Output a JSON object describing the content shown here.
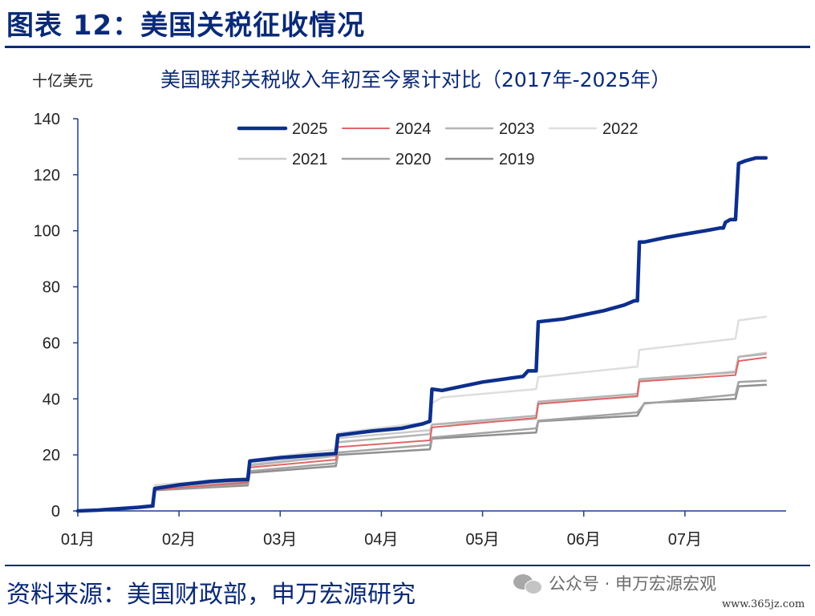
{
  "header": {
    "figure_title": "图表 12：美国关税征收情况",
    "unit_label": "十亿美元"
  },
  "footer": {
    "source": "资料来源：美国财政部，申万宏源研究",
    "wechat": "公众号 · 申万宏源宏观",
    "watermark": "www.365jz.com"
  },
  "chart_data": {
    "type": "line",
    "title": "美国联邦关税收入年初至今累计对比（2017年-2025年）",
    "ylabel": "十亿美元",
    "xlabel": "",
    "ylim": [
      0,
      140
    ],
    "yticks": [
      0,
      20,
      40,
      60,
      80,
      100,
      120,
      140
    ],
    "xlim": [
      0,
      7
    ],
    "xticks": [
      "01月",
      "02月",
      "03月",
      "04月",
      "05月",
      "06月",
      "07月"
    ],
    "grid": false,
    "legend_position": "top-center",
    "series": [
      {
        "name": "2025",
        "color": "#0d2f8c",
        "width": 4.5,
        "points": [
          [
            0,
            0
          ],
          [
            0.2,
            0.3
          ],
          [
            0.4,
            0.8
          ],
          [
            0.6,
            1.3
          ],
          [
            0.74,
            1.8
          ],
          [
            0.76,
            8
          ],
          [
            1.0,
            9.3
          ],
          [
            1.3,
            10.5
          ],
          [
            1.5,
            11.0
          ],
          [
            1.68,
            11.2
          ],
          [
            1.7,
            17.8
          ],
          [
            2.0,
            19.0
          ],
          [
            2.3,
            19.8
          ],
          [
            2.55,
            20.5
          ],
          [
            2.57,
            27
          ],
          [
            2.9,
            28.5
          ],
          [
            3.2,
            29.5
          ],
          [
            3.4,
            31
          ],
          [
            3.48,
            32
          ],
          [
            3.5,
            43.5
          ],
          [
            3.6,
            43
          ],
          [
            3.8,
            44.5
          ],
          [
            4.0,
            46
          ],
          [
            4.2,
            47
          ],
          [
            4.4,
            48
          ],
          [
            4.45,
            50
          ],
          [
            4.5,
            50
          ],
          [
            4.53,
            50
          ],
          [
            4.55,
            67.5
          ],
          [
            4.8,
            68.5
          ],
          [
            5.0,
            70
          ],
          [
            5.2,
            71.5
          ],
          [
            5.4,
            73.5
          ],
          [
            5.5,
            75
          ],
          [
            5.53,
            75
          ],
          [
            5.55,
            96
          ],
          [
            5.6,
            96
          ],
          [
            5.8,
            97.5
          ],
          [
            6.0,
            98.8
          ],
          [
            6.2,
            100
          ],
          [
            6.35,
            101
          ],
          [
            6.38,
            101
          ],
          [
            6.4,
            103
          ],
          [
            6.45,
            104
          ],
          [
            6.5,
            104
          ],
          [
            6.53,
            124
          ],
          [
            6.6,
            125
          ],
          [
            6.7,
            126
          ],
          [
            6.8,
            126
          ]
        ]
      },
      {
        "name": "2024",
        "color": "#e06666",
        "width": 2,
        "points": [
          [
            0,
            0
          ],
          [
            0.4,
            0.8
          ],
          [
            0.75,
            1.6
          ],
          [
            0.76,
            7.6
          ],
          [
            1.68,
            10.2
          ],
          [
            1.7,
            15.5
          ],
          [
            2.55,
            18.3
          ],
          [
            2.57,
            22.8
          ],
          [
            3.48,
            25.2
          ],
          [
            3.5,
            29.8
          ],
          [
            4.53,
            33.2
          ],
          [
            4.55,
            38.2
          ],
          [
            5.53,
            41
          ],
          [
            5.55,
            46.2
          ],
          [
            6.5,
            48.5
          ],
          [
            6.53,
            53.5
          ],
          [
            6.8,
            54.8
          ]
        ]
      },
      {
        "name": "2023",
        "color": "#b5b5b5",
        "width": 2.5,
        "points": [
          [
            0,
            0
          ],
          [
            0.4,
            0.8
          ],
          [
            0.75,
            1.6
          ],
          [
            0.76,
            8
          ],
          [
            1.68,
            10.6
          ],
          [
            1.7,
            16.2
          ],
          [
            2.55,
            19.6
          ],
          [
            2.57,
            24.5
          ],
          [
            3.48,
            27.4
          ],
          [
            3.5,
            30.8
          ],
          [
            4.53,
            34
          ],
          [
            4.55,
            39
          ],
          [
            5.53,
            41.8
          ],
          [
            5.55,
            47
          ],
          [
            6.5,
            49.5
          ],
          [
            6.53,
            55
          ],
          [
            6.8,
            56
          ]
        ]
      },
      {
        "name": "2022",
        "color": "#dedede",
        "width": 2.5,
        "points": [
          [
            0,
            0
          ],
          [
            0.4,
            0.9
          ],
          [
            0.75,
            1.9
          ],
          [
            0.76,
            9.3
          ],
          [
            1.68,
            11.8
          ],
          [
            1.7,
            18.2
          ],
          [
            2.55,
            22
          ],
          [
            2.57,
            27.8
          ],
          [
            3.48,
            31.8
          ],
          [
            3.5,
            38.5
          ],
          [
            3.6,
            40.5
          ],
          [
            4.53,
            43.5
          ],
          [
            4.55,
            47.8
          ],
          [
            5.53,
            51.5
          ],
          [
            5.55,
            57.5
          ],
          [
            6.5,
            61.5
          ],
          [
            6.53,
            68
          ],
          [
            6.8,
            69.3
          ]
        ]
      },
      {
        "name": "2021",
        "color": "#cbcbcb",
        "width": 2.5,
        "points": [
          [
            0,
            0
          ],
          [
            0.4,
            0.9
          ],
          [
            0.75,
            1.8
          ],
          [
            0.76,
            8.9
          ],
          [
            1.68,
            11.2
          ],
          [
            1.7,
            16.6
          ],
          [
            2.55,
            20.2
          ],
          [
            2.57,
            26
          ],
          [
            3.48,
            28.8
          ],
          [
            3.5,
            30.8
          ],
          [
            4.53,
            32.8
          ],
          [
            4.55,
            38.5
          ],
          [
            5.53,
            40.8
          ],
          [
            5.55,
            46.5
          ],
          [
            6.5,
            49.8
          ],
          [
            6.53,
            55
          ],
          [
            6.8,
            56.5
          ]
        ]
      },
      {
        "name": "2020",
        "color": "#a3a3a3",
        "width": 2.5,
        "points": [
          [
            0,
            0
          ],
          [
            0.4,
            0.8
          ],
          [
            0.75,
            1.6
          ],
          [
            0.76,
            7.6
          ],
          [
            1.68,
            9.6
          ],
          [
            1.7,
            14.2
          ],
          [
            2.55,
            17
          ],
          [
            2.57,
            20.8
          ],
          [
            3.48,
            23.6
          ],
          [
            3.5,
            26.2
          ],
          [
            4.53,
            29.5
          ],
          [
            4.55,
            32.2
          ],
          [
            5.53,
            35.2
          ],
          [
            5.6,
            38.3
          ],
          [
            6.5,
            41.5
          ],
          [
            6.53,
            46
          ],
          [
            6.8,
            46.5
          ]
        ]
      },
      {
        "name": "2019",
        "color": "#8f8f8f",
        "width": 2.5,
        "points": [
          [
            0,
            0
          ],
          [
            0.4,
            0.8
          ],
          [
            0.75,
            1.5
          ],
          [
            0.76,
            7.4
          ],
          [
            1.68,
            9.1
          ],
          [
            1.7,
            13.6
          ],
          [
            2.55,
            16
          ],
          [
            2.57,
            20
          ],
          [
            3.48,
            22
          ],
          [
            3.5,
            25.8
          ],
          [
            4.53,
            28
          ],
          [
            4.55,
            32
          ],
          [
            5.53,
            34
          ],
          [
            5.6,
            38.5
          ],
          [
            6.5,
            40
          ],
          [
            6.53,
            44.5
          ],
          [
            6.8,
            45
          ]
        ]
      }
    ]
  }
}
